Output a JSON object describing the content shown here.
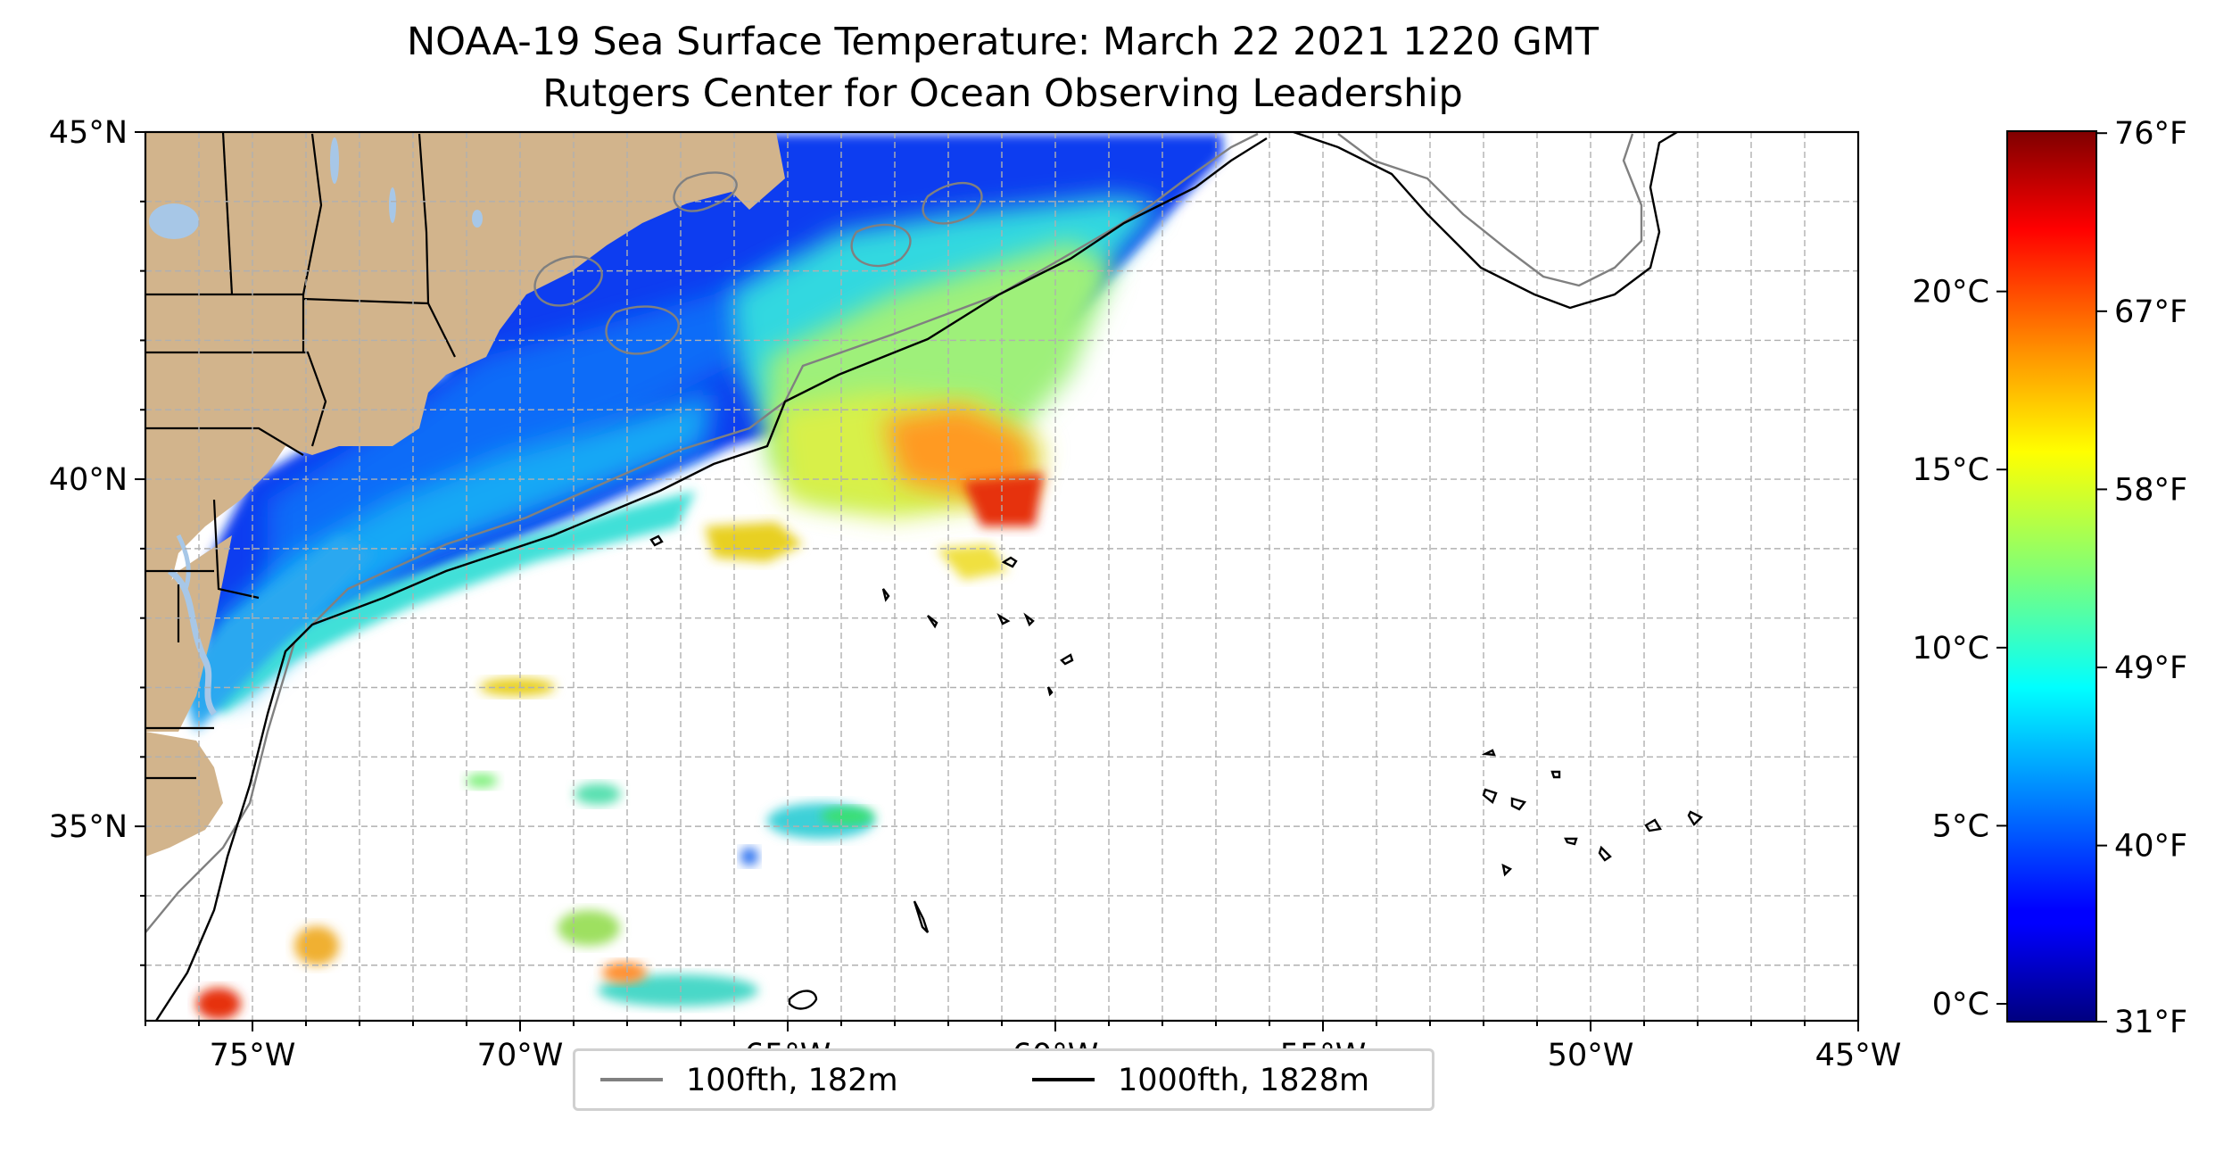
{
  "title": {
    "line1": "NOAA-19 Sea Surface Temperature: March 22 2021 1220 GMT",
    "line2": "Rutgers Center for Ocean Observing Leadership"
  },
  "map": {
    "lon_range": [
      -77,
      -45
    ],
    "lat_range": [
      32.2,
      45
    ],
    "x_ticks": [
      {
        "lon": -75,
        "label": "75°W"
      },
      {
        "lon": -70,
        "label": "70°W"
      },
      {
        "lon": -65,
        "label": "65°W"
      },
      {
        "lon": -60,
        "label": "60°W"
      },
      {
        "lon": -55,
        "label": "55°W"
      },
      {
        "lon": -50,
        "label": "50°W"
      },
      {
        "lon": -45,
        "label": "45°W"
      }
    ],
    "y_ticks": [
      {
        "lat": 45,
        "label": "45°N"
      },
      {
        "lat": 40,
        "label": "40°N"
      },
      {
        "lat": 35,
        "label": "35°N"
      }
    ],
    "grid": "dashed, 1° spacing",
    "colors": {
      "land": "#d2b48c",
      "lakes": "#a7c7e7",
      "no_data": "#ffffff",
      "grid": "#b0b0b0"
    }
  },
  "colorbar": {
    "cmap": "jet",
    "range_c": [
      -0.5,
      24.5
    ],
    "celsius_ticks": [
      {
        "value": 0,
        "label": "0°C"
      },
      {
        "value": 5,
        "label": "5°C"
      },
      {
        "value": 10,
        "label": "10°C"
      },
      {
        "value": 15,
        "label": "15°C"
      },
      {
        "value": 20,
        "label": "20°C"
      }
    ],
    "fahrenheit_ticks": [
      {
        "value": 31,
        "label": "31°F"
      },
      {
        "value": 40,
        "label": "40°F"
      },
      {
        "value": 49,
        "label": "49°F"
      },
      {
        "value": 58,
        "label": "58°F"
      },
      {
        "value": 67,
        "label": "67°F"
      },
      {
        "value": 76,
        "label": "76°F"
      }
    ]
  },
  "legend": {
    "items": [
      {
        "label": "100fth, 182m",
        "color": "#808080"
      },
      {
        "label": "1000fth, 1828m",
        "color": "#000000"
      }
    ]
  }
}
